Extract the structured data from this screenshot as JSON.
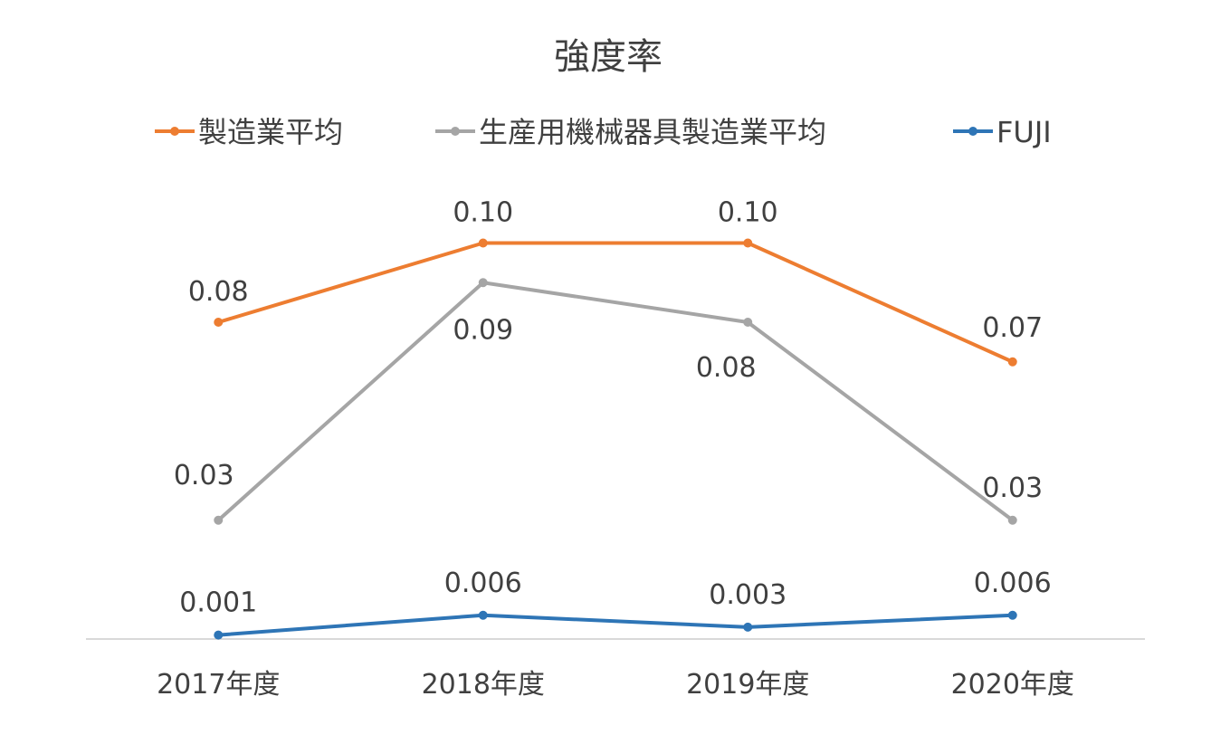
{
  "chart_data": {
    "type": "line",
    "title": "強度率",
    "xlabel": "",
    "ylabel": "",
    "categories": [
      "2017年度",
      "2018年度",
      "2019年度",
      "2020年度"
    ],
    "ylim": [
      0,
      0.11
    ],
    "grid": false,
    "legend_position": "top",
    "series": [
      {
        "name": "製造業平均",
        "color": "#ED7D31",
        "values": [
          0.08,
          0.1,
          0.1,
          0.07
        ],
        "labels": [
          "0.08",
          "0.10",
          "0.10",
          "0.07"
        ]
      },
      {
        "name": "生産用機械器具製造業平均",
        "color": "#A5A5A5",
        "values": [
          0.03,
          0.09,
          0.08,
          0.03
        ],
        "labels": [
          "0.03",
          "0.09",
          "0.08",
          "0.03"
        ]
      },
      {
        "name": "FUJI",
        "color": "#2E75B6",
        "values": [
          0.001,
          0.006,
          0.003,
          0.006
        ],
        "labels": [
          "0.001",
          "0.006",
          "0.003",
          "0.006"
        ]
      }
    ]
  }
}
